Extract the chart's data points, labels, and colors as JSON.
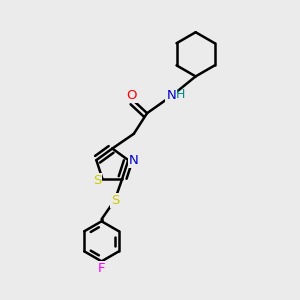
{
  "background_color": "#ebebeb",
  "bond_color": "#000000",
  "atom_colors": {
    "N": "#0000cc",
    "O": "#ff0000",
    "S": "#cccc00",
    "F": "#ff00ff",
    "H": "#008888",
    "C": "#000000"
  },
  "figsize": [
    3.0,
    3.0
  ],
  "dpi": 100
}
